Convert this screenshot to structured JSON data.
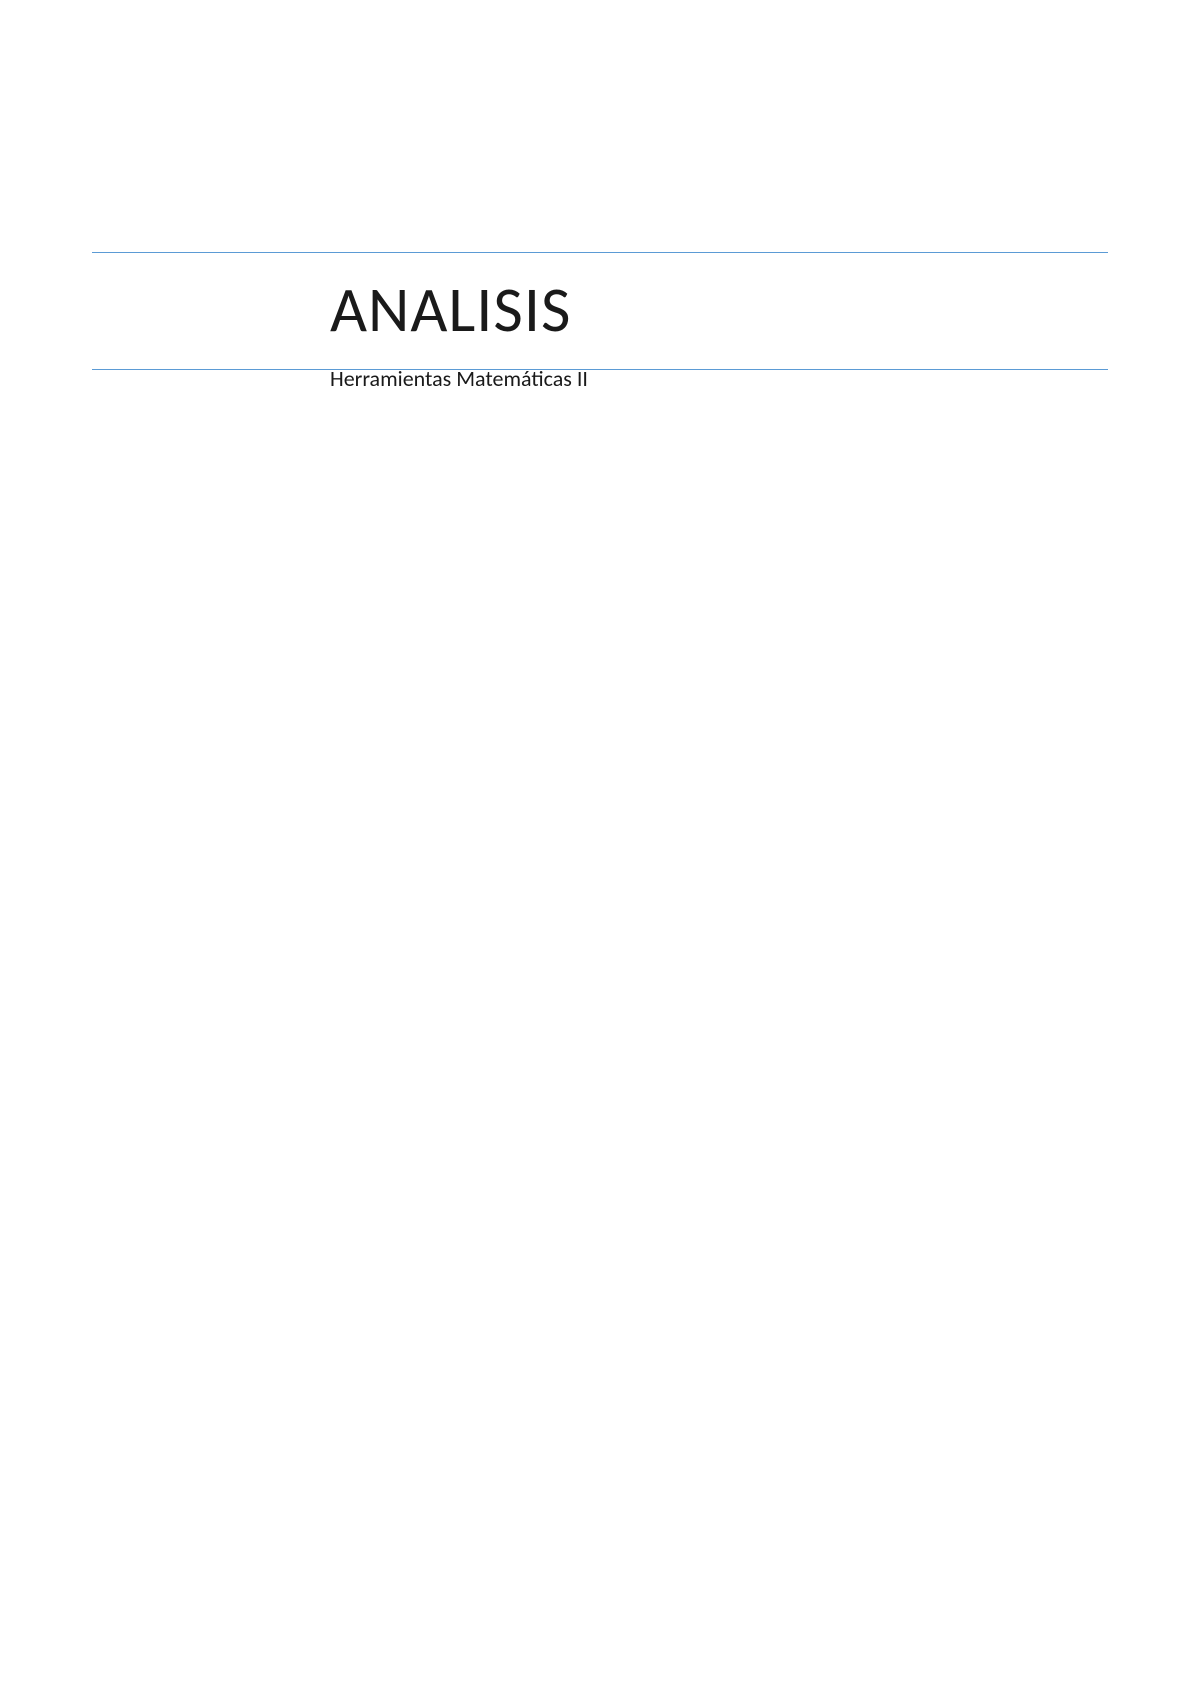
{
  "document": {
    "title": "ANALISIS",
    "subtitle": "Herramientas Matemáticas II",
    "border_color": "#5b9bd5",
    "background_color": "#ffffff",
    "text_color": "#1a1a1a",
    "title_fontsize": 64,
    "subtitle_fontsize": 22
  }
}
